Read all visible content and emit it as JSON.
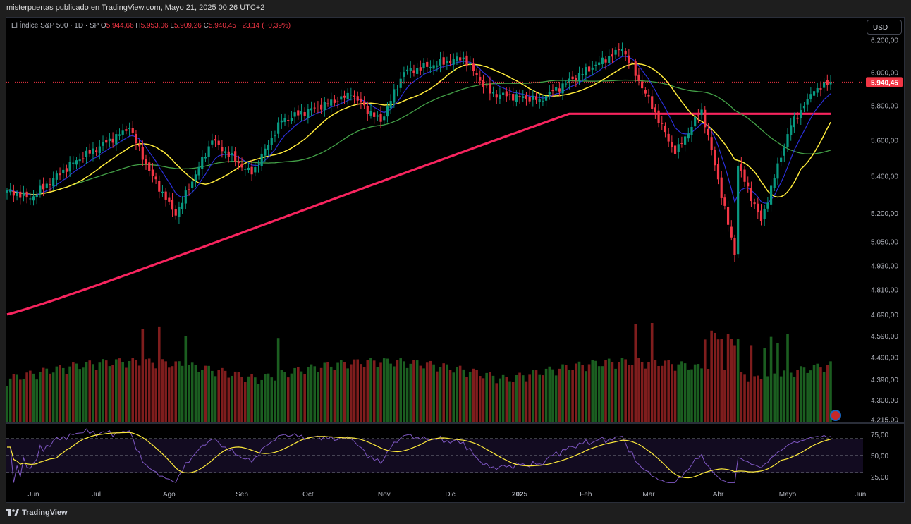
{
  "header": {
    "caption": "misterpuertas publicado en TradingView.com, Mayo 21, 2025 00:26 UTC+2"
  },
  "symbol": {
    "name": "El Índice S&P 500 · 1D · SP",
    "open_label": "O",
    "open": "5.944,66",
    "high_label": "H",
    "high": "5.953,06",
    "low_label": "L",
    "low": "5.909,26",
    "close_label": "C",
    "close": "5.940,45",
    "change": "−23,14 (−0,39%)"
  },
  "currency_button": "USD",
  "price_badge": "5.940,45",
  "footer": {
    "brand": "TradingView"
  },
  "colors": {
    "up": "#089981",
    "down": "#f23645",
    "volume_up": "#1b5e20",
    "volume_down": "#7f1d1d",
    "ma_blue": "#2a2fd9",
    "ma_yellow": "#ffeb3b",
    "ma_green": "#43a047",
    "ma_pink": "#f7245e",
    "rsi_line": "#7e57c2",
    "rsi_ma": "#ffeb3b",
    "badge": "#f23645"
  },
  "chart_data": {
    "type": "candlestick",
    "title": "El Índice S&P 500 · 1D · SP",
    "x_ticks": [
      "Jun",
      "Jul",
      "Ago",
      "Sep",
      "Oct",
      "Nov",
      "Dic",
      "2025",
      "Feb",
      "Mar",
      "Abr",
      "Mayo",
      "Jun"
    ],
    "y_ticks": [
      "6.200,00",
      "6.000,00",
      "5.800,00",
      "5.600,00",
      "5.400,00",
      "5.200,00",
      "5.050,00",
      "4.930,00",
      "4.810,00",
      "4.690,00",
      "4.590,00",
      "4.490,00",
      "4.390,00",
      "4.300,00",
      "4.215,00"
    ],
    "y_tick_values": [
      6200,
      6000,
      5800,
      5600,
      5400,
      5200,
      5050,
      4930,
      4810,
      4690,
      4590,
      4490,
      4390,
      4300,
      4215
    ],
    "scale": "log",
    "ylim": [
      4215,
      6300
    ],
    "last_price": 5940.45,
    "rsi_ticks": [
      "75,00",
      "50,00",
      "25,00"
    ],
    "rsi_levels": [
      70,
      50,
      30
    ],
    "anchors": {
      "dates": [
        "2024-05-21",
        "2024-05-31",
        "2024-06-20",
        "2024-07-16",
        "2024-07-24",
        "2024-08-05",
        "2024-08-20",
        "2024-09-06",
        "2024-09-19",
        "2024-10-18",
        "2024-10-31",
        "2024-11-11",
        "2024-12-06",
        "2024-12-18",
        "2025-01-13",
        "2025-02-19",
        "2025-03-13",
        "2025-03-25",
        "2025-04-08",
        "2025-04-09",
        "2025-04-21",
        "2025-05-02",
        "2025-05-13",
        "2025-05-20"
      ],
      "close": [
        5320,
        5277,
        5473,
        5667,
        5427,
        5186,
        5597,
        5408,
        5713,
        5864,
        5705,
        6001,
        6090,
        5872,
        5836,
        6144,
        5522,
        5776,
        4982,
        5456,
        5158,
        5686,
        5886,
        5940
      ]
    },
    "series": [
      {
        "name": "MA blue",
        "type": "line"
      },
      {
        "name": "MA yellow",
        "type": "line"
      },
      {
        "name": "MA green",
        "type": "line"
      },
      {
        "name": "MA pink",
        "type": "line"
      },
      {
        "name": "Volume",
        "type": "bar"
      },
      {
        "name": "RSI",
        "type": "line"
      },
      {
        "name": "RSI MA",
        "type": "line"
      }
    ]
  }
}
